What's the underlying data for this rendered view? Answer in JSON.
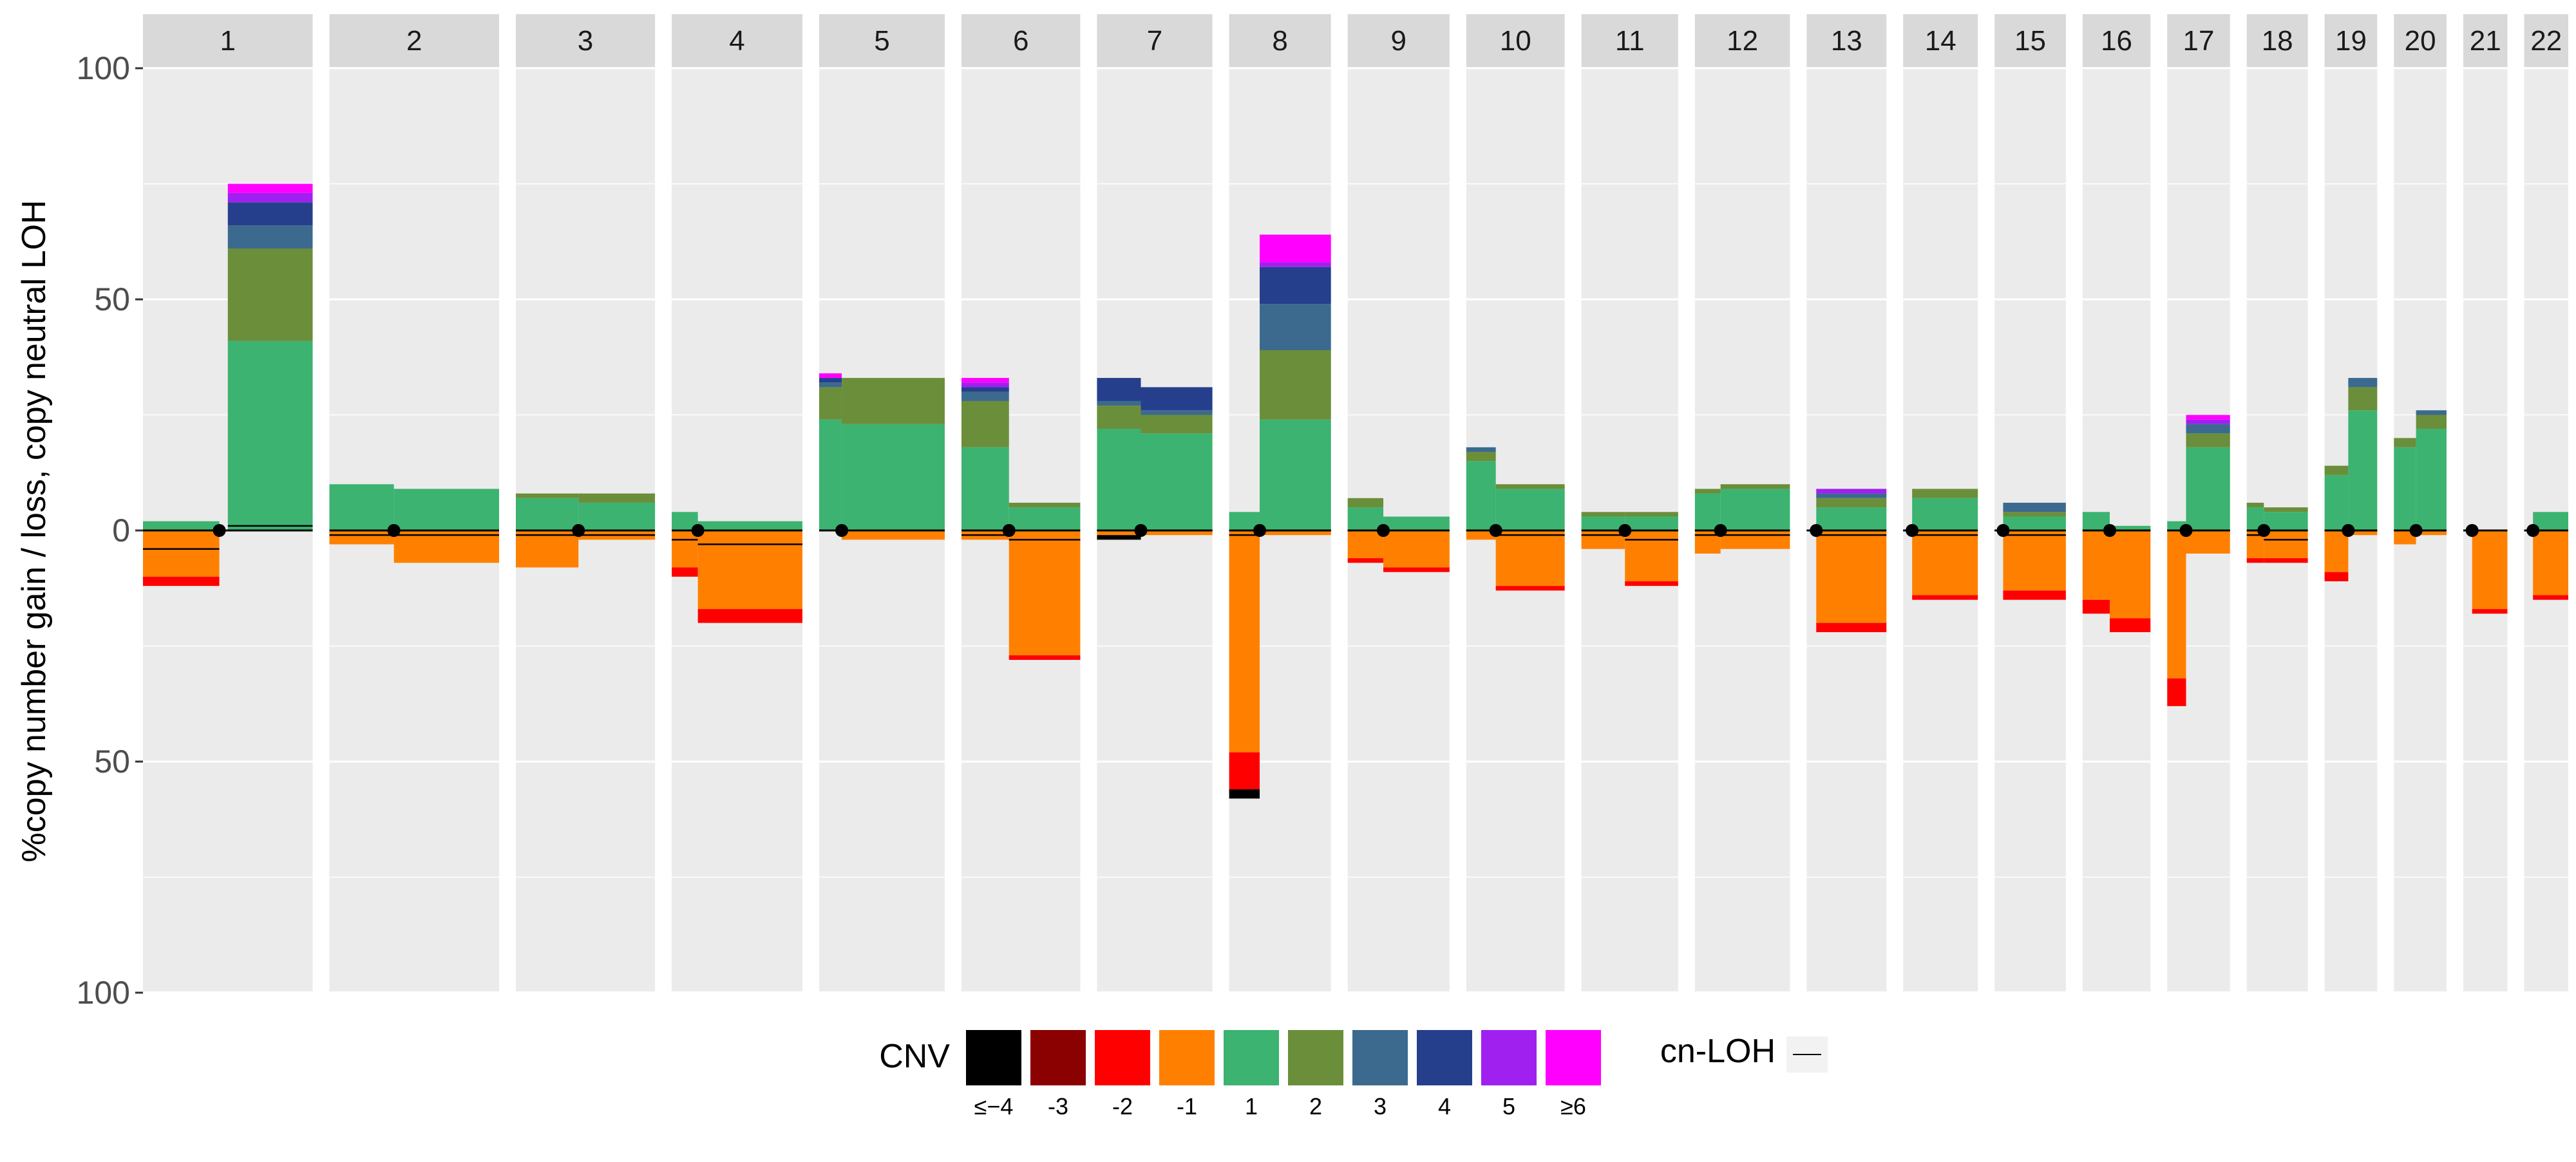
{
  "chart_data": {
    "type": "area",
    "ylabel": "%copy number gain / loss, copy neutral LOH",
    "y_ticks": [
      {
        "value": 100,
        "label": "100"
      },
      {
        "value": 50,
        "label": "50"
      },
      {
        "value": 0,
        "label": "0"
      },
      {
        "value": -50,
        "label": "50"
      },
      {
        "value": -100,
        "label": "100"
      }
    ],
    "ylim": [
      -100,
      100
    ],
    "grid": true,
    "legend_position": "bottom",
    "legend": {
      "cnv_title": "CNV",
      "cnv_entries": [
        {
          "label": "≤−4",
          "color": "#000000"
        },
        {
          "label": "-3",
          "color": "#8b0000"
        },
        {
          "label": "-2",
          "color": "#ff0000"
        },
        {
          "label": "-1",
          "color": "#ff8000"
        },
        {
          "label": "1",
          "color": "#3cb371"
        },
        {
          "label": "2",
          "color": "#6b8e3a"
        },
        {
          "label": "3",
          "color": "#3b6a8e"
        },
        {
          "label": "4",
          "color": "#263f8c"
        },
        {
          "label": "5",
          "color": "#a020f0"
        },
        {
          "label": "≥6",
          "color": "#ff00ff"
        }
      ],
      "loh_title": "cn-LOH"
    },
    "colors": {
      "loss1": "#ff8000",
      "loss2": "#ff0000",
      "loss3": "#8b0000",
      "loss4": "#000000",
      "gain1": "#3cb371",
      "gain2": "#6b8e3a",
      "gain3": "#3b6a8e",
      "gain4": "#263f8c",
      "gain5": "#a020f0",
      "gain6": "#ff00ff",
      "panel_bg": "#ebebeb",
      "strip_bg": "#d9d9d9",
      "grid": "#ffffff"
    },
    "chromosomes": [
      {
        "name": "1",
        "panel_width": 1,
        "centromere": 0.45,
        "segments": [
          {
            "start": 0.0,
            "end": 0.45,
            "gain": [
              2,
              0,
              0,
              0,
              0,
              0
            ],
            "loss": [
              10,
              2,
              0,
              0
            ],
            "loh": 4
          },
          {
            "start": 0.5,
            "end": 1.0,
            "gain": [
              41,
              20,
              5,
              5,
              2,
              2
            ],
            "loss": [
              0,
              0,
              0,
              0
            ],
            "loh": -1
          }
        ]
      },
      {
        "name": "2",
        "panel_width": 1.0,
        "centromere": 0.38,
        "segments": [
          {
            "start": 0.0,
            "end": 0.38,
            "gain": [
              10,
              0,
              0,
              0,
              0,
              0
            ],
            "loss": [
              3,
              0,
              0,
              0
            ],
            "loh": 1
          },
          {
            "start": 0.38,
            "end": 1.0,
            "gain": [
              9,
              0,
              0,
              0,
              0,
              0
            ],
            "loss": [
              7,
              0,
              0,
              0
            ],
            "loh": 1
          }
        ]
      },
      {
        "name": "3",
        "panel_width": 0.82,
        "centromere": 0.45,
        "segments": [
          {
            "start": 0.0,
            "end": 0.45,
            "gain": [
              7,
              1,
              0,
              0,
              0,
              0
            ],
            "loss": [
              8,
              0,
              0,
              0
            ],
            "loh": 1
          },
          {
            "start": 0.45,
            "end": 1.0,
            "gain": [
              6,
              2,
              0,
              0,
              0,
              0
            ],
            "loss": [
              2,
              0,
              0,
              0
            ],
            "loh": 1
          }
        ]
      },
      {
        "name": "4",
        "panel_width": 0.77,
        "centromere": 0.2,
        "segments": [
          {
            "start": 0.0,
            "end": 0.2,
            "gain": [
              4,
              0,
              0,
              0,
              0,
              0
            ],
            "loss": [
              8,
              2,
              0,
              0
            ],
            "loh": 2
          },
          {
            "start": 0.2,
            "end": 1.0,
            "gain": [
              2,
              0,
              0,
              0,
              0,
              0
            ],
            "loss": [
              17,
              3,
              0,
              0
            ],
            "loh": 3
          }
        ]
      },
      {
        "name": "5",
        "panel_width": 0.74,
        "centromere": 0.18,
        "segments": [
          {
            "start": 0.0,
            "end": 0.18,
            "gain": [
              24,
              7,
              1,
              1,
              0,
              1
            ],
            "loss": [
              0,
              0,
              0,
              0
            ],
            "loh": 0
          },
          {
            "start": 0.18,
            "end": 1.0,
            "gain": [
              23,
              10,
              0,
              0,
              0,
              0
            ],
            "loss": [
              2,
              0,
              0,
              0
            ],
            "loh": 0
          }
        ]
      },
      {
        "name": "6",
        "panel_width": 0.7,
        "centromere": 0.4,
        "segments": [
          {
            "start": 0.0,
            "end": 0.4,
            "gain": [
              18,
              10,
              2,
              1,
              1,
              1
            ],
            "loss": [
              2,
              0,
              0,
              0
            ],
            "loh": 1
          },
          {
            "start": 0.4,
            "end": 1.0,
            "gain": [
              5,
              1,
              0,
              0,
              0,
              0
            ],
            "loss": [
              27,
              1,
              0,
              0
            ],
            "loh": 2
          }
        ]
      },
      {
        "name": "7",
        "panel_width": 0.68,
        "centromere": 0.38,
        "segments": [
          {
            "start": 0.0,
            "end": 0.38,
            "gain": [
              22,
              5,
              1,
              5,
              0,
              0
            ],
            "loss": [
              1,
              0,
              0,
              1
            ],
            "loh": 0
          },
          {
            "start": 0.38,
            "end": 1.0,
            "gain": [
              21,
              4,
              1,
              5,
              0,
              0
            ],
            "loss": [
              1,
              0,
              0,
              0
            ],
            "loh": 0
          }
        ]
      },
      {
        "name": "8",
        "panel_width": 0.6,
        "centromere": 0.3,
        "segments": [
          {
            "start": 0.0,
            "end": 0.3,
            "gain": [
              4,
              0,
              0,
              0,
              0,
              0
            ],
            "loss": [
              48,
              8,
              0,
              2
            ],
            "loh": 1
          },
          {
            "start": 0.3,
            "end": 1.0,
            "gain": [
              24,
              15,
              10,
              8,
              1,
              6
            ],
            "loss": [
              1,
              0,
              0,
              0
            ],
            "loh": 0
          }
        ]
      },
      {
        "name": "9",
        "panel_width": 0.6,
        "centromere": 0.35,
        "segments": [
          {
            "start": 0.0,
            "end": 0.35,
            "gain": [
              5,
              2,
              0,
              0,
              0,
              0
            ],
            "loss": [
              6,
              1,
              0,
              0
            ],
            "loh": 0
          },
          {
            "start": 0.35,
            "end": 1.0,
            "gain": [
              3,
              0,
              0,
              0,
              0,
              0
            ],
            "loss": [
              8,
              1,
              0,
              0
            ],
            "loh": 0
          }
        ]
      },
      {
        "name": "10",
        "panel_width": 0.58,
        "centromere": 0.3,
        "segments": [
          {
            "start": 0.0,
            "end": 0.3,
            "gain": [
              15,
              2,
              1,
              0,
              0,
              0
            ],
            "loss": [
              2,
              0,
              0,
              0
            ],
            "loh": 0
          },
          {
            "start": 0.3,
            "end": 1.0,
            "gain": [
              9,
              1,
              0,
              0,
              0,
              0
            ],
            "loss": [
              12,
              1,
              0,
              0
            ],
            "loh": 1
          }
        ]
      },
      {
        "name": "11",
        "panel_width": 0.57,
        "centromere": 0.45,
        "segments": [
          {
            "start": 0.0,
            "end": 0.45,
            "gain": [
              3,
              1,
              0,
              0,
              0,
              0
            ],
            "loss": [
              4,
              0,
              0,
              0
            ],
            "loh": 1
          },
          {
            "start": 0.45,
            "end": 1.0,
            "gain": [
              3,
              1,
              0,
              0,
              0,
              0
            ],
            "loss": [
              11,
              1,
              0,
              0
            ],
            "loh": 2
          }
        ]
      },
      {
        "name": "12",
        "panel_width": 0.56,
        "centromere": 0.27,
        "segments": [
          {
            "start": 0.0,
            "end": 0.27,
            "gain": [
              8,
              1,
              0,
              0,
              0,
              0
            ],
            "loss": [
              5,
              0,
              0,
              0
            ],
            "loh": 1
          },
          {
            "start": 0.27,
            "end": 1.0,
            "gain": [
              9,
              1,
              0,
              0,
              0,
              0
            ],
            "loss": [
              4,
              0,
              0,
              0
            ],
            "loh": 1
          }
        ]
      },
      {
        "name": "13",
        "panel_width": 0.47,
        "centromere": 0.12,
        "segments": [
          {
            "start": 0.0,
            "end": 0.12,
            "gain": [
              0,
              0,
              0,
              0,
              0,
              0
            ],
            "loss": [
              0,
              0,
              0,
              0
            ],
            "loh": 0
          },
          {
            "start": 0.12,
            "end": 1.0,
            "gain": [
              5,
              2,
              1,
              0,
              1,
              0
            ],
            "loss": [
              20,
              2,
              0,
              0
            ],
            "loh": 1
          }
        ]
      },
      {
        "name": "14",
        "panel_width": 0.44,
        "centromere": 0.12,
        "segments": [
          {
            "start": 0.0,
            "end": 0.12,
            "gain": [
              0,
              0,
              0,
              0,
              0,
              0
            ],
            "loss": [
              0,
              0,
              0,
              0
            ],
            "loh": 0
          },
          {
            "start": 0.12,
            "end": 1.0,
            "gain": [
              7,
              2,
              0,
              0,
              0,
              0
            ],
            "loss": [
              14,
              1,
              0,
              0
            ],
            "loh": 1
          }
        ]
      },
      {
        "name": "15",
        "panel_width": 0.42,
        "centromere": 0.12,
        "segments": [
          {
            "start": 0.0,
            "end": 0.12,
            "gain": [
              0,
              0,
              0,
              0,
              0,
              0
            ],
            "loss": [
              0,
              0,
              0,
              0
            ],
            "loh": 0
          },
          {
            "start": 0.12,
            "end": 1.0,
            "gain": [
              3,
              1,
              2,
              0,
              0,
              0
            ],
            "loss": [
              13,
              2,
              0,
              0
            ],
            "loh": 1
          }
        ]
      },
      {
        "name": "16",
        "panel_width": 0.4,
        "centromere": 0.4,
        "segments": [
          {
            "start": 0.0,
            "end": 0.4,
            "gain": [
              4,
              0,
              0,
              0,
              0,
              0
            ],
            "loss": [
              15,
              3,
              0,
              0
            ],
            "loh": 0
          },
          {
            "start": 0.4,
            "end": 1.0,
            "gain": [
              1,
              0,
              0,
              0,
              0,
              0
            ],
            "loss": [
              19,
              3,
              0,
              0
            ],
            "loh": 0
          }
        ]
      },
      {
        "name": "17",
        "panel_width": 0.37,
        "centromere": 0.3,
        "segments": [
          {
            "start": 0.0,
            "end": 0.3,
            "gain": [
              2,
              0,
              0,
              0,
              0,
              0
            ],
            "loss": [
              32,
              6,
              0,
              0
            ],
            "loh": 0
          },
          {
            "start": 0.3,
            "end": 1.0,
            "gain": [
              18,
              3,
              2,
              0,
              1,
              1
            ],
            "loss": [
              5,
              0,
              0,
              0
            ],
            "loh": 0
          }
        ]
      },
      {
        "name": "18",
        "panel_width": 0.36,
        "centromere": 0.28,
        "segments": [
          {
            "start": 0.0,
            "end": 0.28,
            "gain": [
              5,
              1,
              0,
              0,
              0,
              0
            ],
            "loss": [
              6,
              1,
              0,
              0
            ],
            "loh": 1
          },
          {
            "start": 0.28,
            "end": 1.0,
            "gain": [
              4,
              1,
              0,
              0,
              0,
              0
            ],
            "loss": [
              6,
              1,
              0,
              0
            ],
            "loh": 2
          }
        ]
      },
      {
        "name": "19",
        "panel_width": 0.31,
        "centromere": 0.45,
        "segments": [
          {
            "start": 0.0,
            "end": 0.45,
            "gain": [
              12,
              2,
              0,
              0,
              0,
              0
            ],
            "loss": [
              9,
              2,
              0,
              0
            ],
            "loh": 0
          },
          {
            "start": 0.45,
            "end": 1.0,
            "gain": [
              26,
              5,
              2,
              0,
              0,
              0
            ],
            "loss": [
              1,
              0,
              0,
              0
            ],
            "loh": 0
          }
        ]
      },
      {
        "name": "20",
        "panel_width": 0.31,
        "centromere": 0.42,
        "segments": [
          {
            "start": 0.0,
            "end": 0.42,
            "gain": [
              18,
              2,
              0,
              0,
              0,
              0
            ],
            "loss": [
              3,
              0,
              0,
              0
            ],
            "loh": 0
          },
          {
            "start": 0.42,
            "end": 1.0,
            "gain": [
              22,
              3,
              1,
              0,
              0,
              0
            ],
            "loss": [
              1,
              0,
              0,
              0
            ],
            "loh": 0
          }
        ]
      },
      {
        "name": "21",
        "panel_width": 0.26,
        "centromere": 0.2,
        "segments": [
          {
            "start": 0.0,
            "end": 0.2,
            "gain": [
              0,
              0,
              0,
              0,
              0,
              0
            ],
            "loss": [
              0,
              0,
              0,
              0
            ],
            "loh": 0
          },
          {
            "start": 0.2,
            "end": 1.0,
            "gain": [
              0,
              0,
              0,
              0,
              0,
              0
            ],
            "loss": [
              17,
              1,
              0,
              0
            ],
            "loh": 0
          }
        ]
      },
      {
        "name": "22",
        "panel_width": 0.26,
        "centromere": 0.2,
        "segments": [
          {
            "start": 0.0,
            "end": 0.2,
            "gain": [
              0,
              0,
              0,
              0,
              0,
              0
            ],
            "loss": [
              0,
              0,
              0,
              0
            ],
            "loh": 0
          },
          {
            "start": 0.2,
            "end": 1.0,
            "gain": [
              4,
              0,
              0,
              0,
              0,
              0
            ],
            "loss": [
              14,
              1,
              0,
              0
            ],
            "loh": 0
          }
        ]
      }
    ]
  }
}
